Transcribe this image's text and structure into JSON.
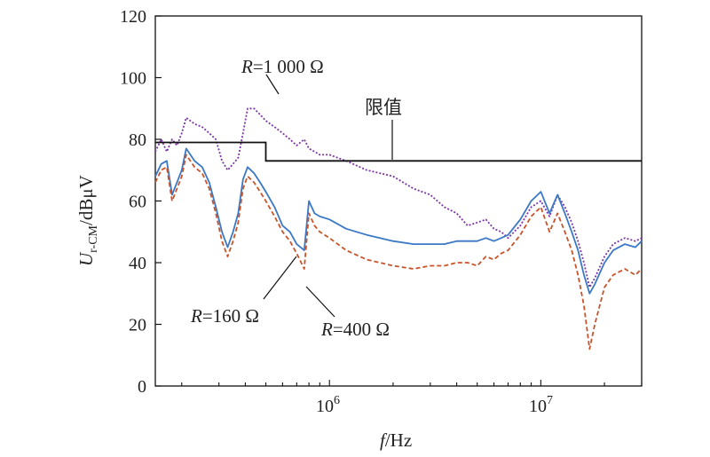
{
  "chart_data": {
    "type": "line",
    "x_scale": "log",
    "xlim": [
      150000,
      30000000
    ],
    "ylim": [
      0,
      120
    ],
    "grid": false,
    "y_ticks": [
      0,
      20,
      40,
      60,
      80,
      100,
      120
    ],
    "x_ticks": [
      {
        "value": 1000000,
        "base": "10",
        "exp": "6"
      },
      {
        "value": 10000000,
        "base": "10",
        "exp": "7"
      }
    ],
    "xlabel": {
      "italic": "f",
      "rest": "/Hz"
    },
    "ylabel": {
      "italic": "U",
      "sub": "r-CM",
      "rest": "/dBμV"
    },
    "limit_line": {
      "label": "限值",
      "points": [
        [
          150000,
          79
        ],
        [
          500000,
          79
        ],
        [
          500000,
          73
        ],
        [
          30000000,
          73
        ]
      ]
    },
    "series": [
      {
        "label_italic": "R",
        "label_rest": "=1 000 Ω",
        "color": "#7b35a8",
        "dash": "2,2",
        "points": [
          [
            150000,
            76
          ],
          [
            160000,
            80
          ],
          [
            170000,
            76
          ],
          [
            180000,
            80
          ],
          [
            190000,
            78
          ],
          [
            200000,
            82
          ],
          [
            210000,
            87
          ],
          [
            230000,
            85
          ],
          [
            250000,
            84
          ],
          [
            270000,
            82
          ],
          [
            290000,
            80
          ],
          [
            310000,
            73
          ],
          [
            330000,
            70
          ],
          [
            350000,
            72
          ],
          [
            370000,
            74
          ],
          [
            390000,
            82
          ],
          [
            410000,
            90
          ],
          [
            440000,
            90
          ],
          [
            470000,
            88
          ],
          [
            500000,
            86
          ],
          [
            550000,
            84
          ],
          [
            600000,
            82
          ],
          [
            650000,
            80
          ],
          [
            700000,
            78
          ],
          [
            760000,
            80
          ],
          [
            800000,
            77
          ],
          [
            850000,
            76
          ],
          [
            900000,
            75
          ],
          [
            1000000,
            75
          ],
          [
            1200000,
            73
          ],
          [
            1500000,
            70
          ],
          [
            2000000,
            68
          ],
          [
            2500000,
            64
          ],
          [
            3000000,
            62
          ],
          [
            3500000,
            58
          ],
          [
            4000000,
            56
          ],
          [
            4500000,
            52
          ],
          [
            5000000,
            53
          ],
          [
            5500000,
            54
          ],
          [
            6000000,
            51
          ],
          [
            6500000,
            50
          ],
          [
            7000000,
            48
          ],
          [
            8000000,
            52
          ],
          [
            9000000,
            58
          ],
          [
            10000000,
            60
          ],
          [
            11000000,
            55
          ],
          [
            12000000,
            62
          ],
          [
            13000000,
            58
          ],
          [
            14000000,
            53
          ],
          [
            15000000,
            47
          ],
          [
            16000000,
            40
          ],
          [
            17000000,
            32
          ],
          [
            18000000,
            35
          ],
          [
            20000000,
            42
          ],
          [
            22000000,
            46
          ],
          [
            25000000,
            48
          ],
          [
            28000000,
            47
          ],
          [
            30000000,
            48
          ]
        ]
      },
      {
        "label_italic": "R",
        "label_rest": "=160 Ω",
        "color": "#3b78c5",
        "dash": "",
        "points": [
          [
            150000,
            68
          ],
          [
            160000,
            72
          ],
          [
            170000,
            73
          ],
          [
            180000,
            62
          ],
          [
            190000,
            66
          ],
          [
            200000,
            70
          ],
          [
            210000,
            77
          ],
          [
            230000,
            73
          ],
          [
            250000,
            71
          ],
          [
            270000,
            66
          ],
          [
            290000,
            58
          ],
          [
            310000,
            50
          ],
          [
            330000,
            45
          ],
          [
            350000,
            50
          ],
          [
            370000,
            56
          ],
          [
            390000,
            67
          ],
          [
            410000,
            71
          ],
          [
            440000,
            69
          ],
          [
            470000,
            66
          ],
          [
            500000,
            63
          ],
          [
            550000,
            58
          ],
          [
            600000,
            52
          ],
          [
            650000,
            50
          ],
          [
            700000,
            46
          ],
          [
            760000,
            44
          ],
          [
            800000,
            60
          ],
          [
            850000,
            56
          ],
          [
            900000,
            55
          ],
          [
            1000000,
            54
          ],
          [
            1200000,
            51
          ],
          [
            1500000,
            49
          ],
          [
            2000000,
            47
          ],
          [
            2500000,
            46
          ],
          [
            3000000,
            46
          ],
          [
            3500000,
            46
          ],
          [
            4000000,
            47
          ],
          [
            4500000,
            47
          ],
          [
            5000000,
            47
          ],
          [
            5500000,
            48
          ],
          [
            6000000,
            47
          ],
          [
            6500000,
            48
          ],
          [
            7000000,
            49
          ],
          [
            8000000,
            54
          ],
          [
            9000000,
            60
          ],
          [
            10000000,
            63
          ],
          [
            11000000,
            56
          ],
          [
            12000000,
            62
          ],
          [
            13000000,
            56
          ],
          [
            14000000,
            50
          ],
          [
            15000000,
            44
          ],
          [
            16000000,
            36
          ],
          [
            17000000,
            30
          ],
          [
            18000000,
            33
          ],
          [
            20000000,
            40
          ],
          [
            22000000,
            44
          ],
          [
            25000000,
            46
          ],
          [
            28000000,
            45
          ],
          [
            30000000,
            47
          ]
        ]
      },
      {
        "label_italic": "R",
        "label_rest": "=400 Ω",
        "color": "#c8532a",
        "dash": "5,3",
        "points": [
          [
            150000,
            66
          ],
          [
            160000,
            70
          ],
          [
            170000,
            71
          ],
          [
            180000,
            60
          ],
          [
            190000,
            64
          ],
          [
            200000,
            68
          ],
          [
            210000,
            75
          ],
          [
            230000,
            71
          ],
          [
            250000,
            69
          ],
          [
            270000,
            64
          ],
          [
            290000,
            56
          ],
          [
            310000,
            47
          ],
          [
            330000,
            42
          ],
          [
            350000,
            47
          ],
          [
            370000,
            53
          ],
          [
            390000,
            64
          ],
          [
            410000,
            68
          ],
          [
            440000,
            66
          ],
          [
            470000,
            63
          ],
          [
            500000,
            60
          ],
          [
            550000,
            55
          ],
          [
            600000,
            50
          ],
          [
            650000,
            47
          ],
          [
            700000,
            43
          ],
          [
            760000,
            38
          ],
          [
            800000,
            56
          ],
          [
            850000,
            52
          ],
          [
            900000,
            50
          ],
          [
            1000000,
            48
          ],
          [
            1200000,
            44
          ],
          [
            1500000,
            41
          ],
          [
            2000000,
            39
          ],
          [
            2500000,
            38
          ],
          [
            3000000,
            39
          ],
          [
            3500000,
            39
          ],
          [
            4000000,
            40
          ],
          [
            4500000,
            40
          ],
          [
            5000000,
            39
          ],
          [
            5500000,
            42
          ],
          [
            6000000,
            41
          ],
          [
            6500000,
            43
          ],
          [
            7000000,
            44
          ],
          [
            8000000,
            49
          ],
          [
            9000000,
            55
          ],
          [
            10000000,
            58
          ],
          [
            11000000,
            50
          ],
          [
            12000000,
            56
          ],
          [
            13000000,
            50
          ],
          [
            14000000,
            44
          ],
          [
            15000000,
            36
          ],
          [
            16000000,
            26
          ],
          [
            17000000,
            12
          ],
          [
            18000000,
            20
          ],
          [
            20000000,
            32
          ],
          [
            22000000,
            36
          ],
          [
            25000000,
            38
          ],
          [
            28000000,
            36
          ],
          [
            30000000,
            38
          ]
        ]
      }
    ]
  }
}
